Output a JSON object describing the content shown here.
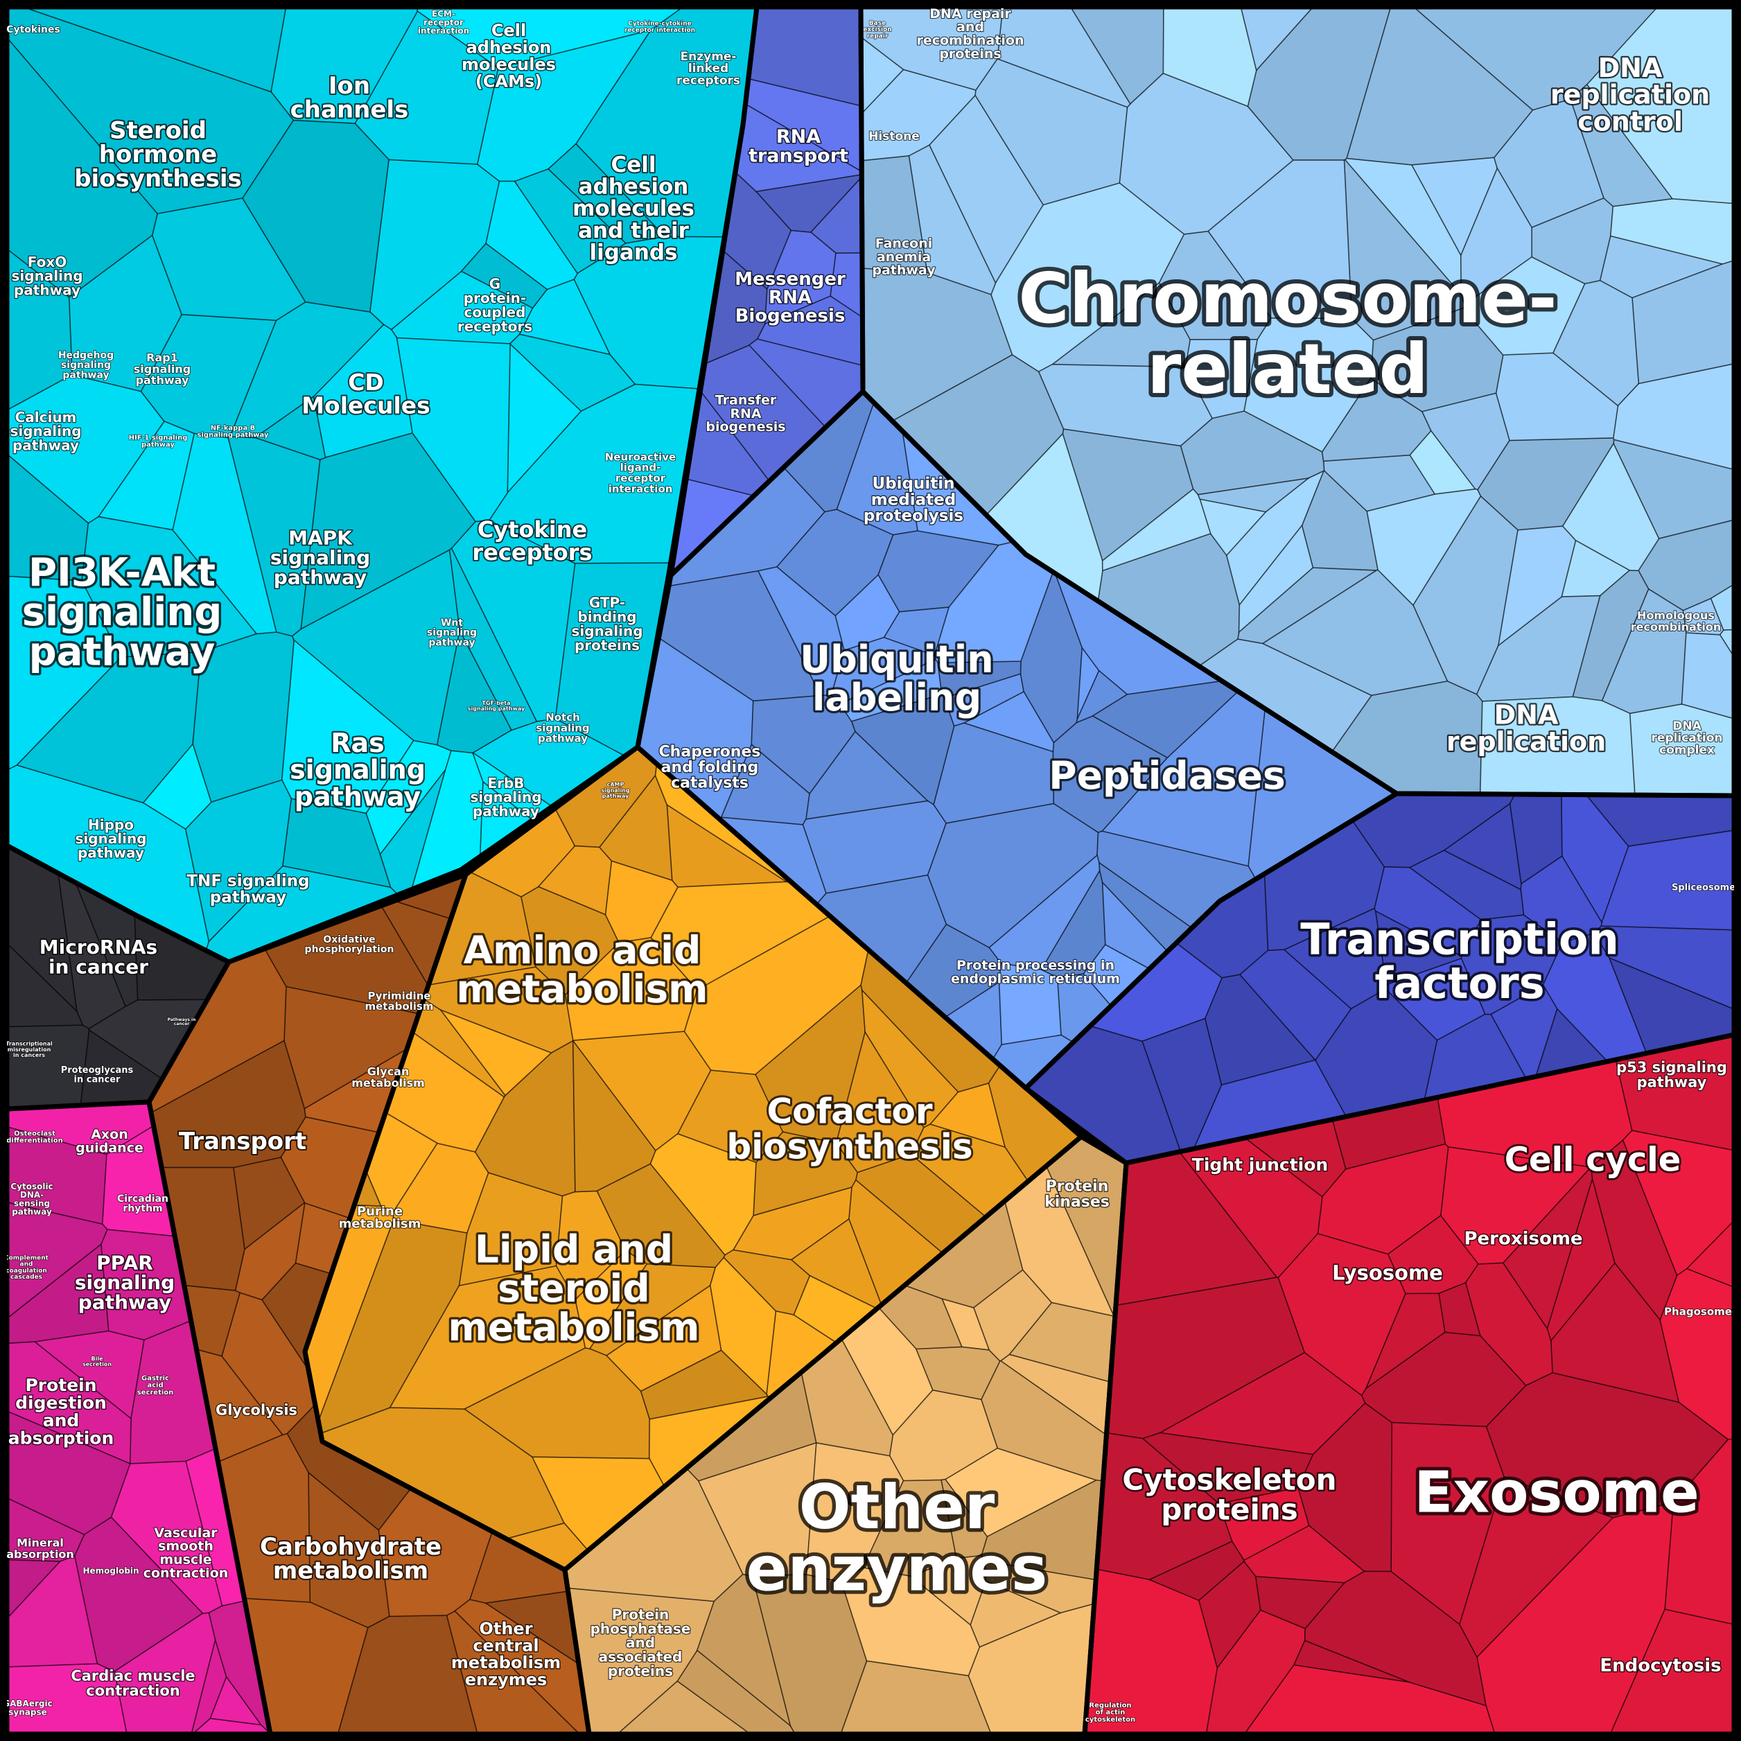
{
  "diagram": {
    "type": "voronoi-treemap",
    "groups": [
      {
        "id": "signaling",
        "color": "#00d4ec"
      },
      {
        "id": "chromosome-related",
        "color": "#9dd0fb"
      },
      {
        "id": "rna",
        "color": "#5d6fe0"
      },
      {
        "id": "protein-processing",
        "color": "#6b9af0"
      },
      {
        "id": "transcription",
        "color": "#4550cc"
      },
      {
        "id": "metabolism",
        "color": "#f0a21f"
      },
      {
        "id": "transport-carbs",
        "color": "#a8561c"
      },
      {
        "id": "other-enzymes",
        "color": "#e6b36c"
      },
      {
        "id": "cellular",
        "color": "#d6183a"
      },
      {
        "id": "organismal",
        "color": "#e0209c"
      },
      {
        "id": "cancer",
        "color": "#2d2d33"
      }
    ],
    "labels": [
      {
        "key": "cytokines",
        "text": "Cytokines"
      },
      {
        "key": "ecm",
        "text": "ECM-\nreceptor\ninteraction"
      },
      {
        "key": "cytokine-cytokine",
        "text": "Cytokine-cytokine\nreceptor interaction"
      },
      {
        "key": "steroid-hormone",
        "text": "Steroid\nhormone\nbiosynthesis"
      },
      {
        "key": "ion-channels",
        "text": "Ion\nchannels"
      },
      {
        "key": "cams",
        "text": "Cell\nadhesion\nmolecules\n(CAMs)"
      },
      {
        "key": "enzyme-linked",
        "text": "Enzyme-\nlinked\nreceptors"
      },
      {
        "key": "cell-adhesion-ligands",
        "text": "Cell\nadhesion\nmolecules\nand their\nligands"
      },
      {
        "key": "foxo",
        "text": "FoxO\nsignaling\npathway"
      },
      {
        "key": "hedgehog",
        "text": "Hedgehog\nsignaling\npathway"
      },
      {
        "key": "rap1",
        "text": "Rap1\nsignaling\npathway"
      },
      {
        "key": "gpcr",
        "text": "G\nprotein-\ncoupled\nreceptors"
      },
      {
        "key": "cd-molecules",
        "text": "CD\nMolecules"
      },
      {
        "key": "calcium",
        "text": "Calcium\nsignaling\npathway"
      },
      {
        "key": "hif1",
        "text": "HIF-1 signaling\npathway"
      },
      {
        "key": "nfkb",
        "text": "NF-kappa B\nsignaling pathway"
      },
      {
        "key": "neuroactive",
        "text": "Neuroactive\nligand-\nreceptor\ninteraction"
      },
      {
        "key": "cytokine-receptors",
        "text": "Cytokine\nreceptors"
      },
      {
        "key": "mapk",
        "text": "MAPK\nsignaling\npathway"
      },
      {
        "key": "pi3k",
        "text": "PI3K-Akt\nsignaling\npathway"
      },
      {
        "key": "wnt",
        "text": "Wnt\nsignaling\npathway"
      },
      {
        "key": "gtp",
        "text": "GTP-\nbinding\nsignaling\nproteins"
      },
      {
        "key": "tgf",
        "text": "TGF-beta\nsignaling pathway"
      },
      {
        "key": "notch",
        "text": "Notch\nsignaling\npathway"
      },
      {
        "key": "ras",
        "text": "Ras\nsignaling\npathway"
      },
      {
        "key": "erbb",
        "text": "ErbB\nsignaling\npathway"
      },
      {
        "key": "camp",
        "text": "cAMP\nsignaling\npathway"
      },
      {
        "key": "hippo",
        "text": "Hippo\nsignaling\npathway"
      },
      {
        "key": "tnf",
        "text": "TNF signaling\npathway"
      },
      {
        "key": "mirna",
        "text": "MicroRNAs\nin cancer"
      },
      {
        "key": "pathways-cancer",
        "text": "Pathways in\ncancer"
      },
      {
        "key": "transcriptional-misreg",
        "text": "Transcriptional\nmisregulation\nin cancers"
      },
      {
        "key": "proteoglycans",
        "text": "Proteoglycans\nin cancer"
      },
      {
        "key": "rna-transport",
        "text": "RNA\ntransport"
      },
      {
        "key": "base-excision",
        "text": "Base\nexcision\nrepair"
      },
      {
        "key": "dna-repair",
        "text": "DNA repair\nand\nrecombination\nproteins"
      },
      {
        "key": "histone",
        "text": "Histone"
      },
      {
        "key": "dna-replication-control",
        "text": "DNA\nreplication\ncontrol"
      },
      {
        "key": "fanconi",
        "text": "Fanconi\nanemia\npathway"
      },
      {
        "key": "mrna",
        "text": "Messenger\nRNA\nBiogenesis"
      },
      {
        "key": "chromosome",
        "text": "Chromosome-\nrelated"
      },
      {
        "key": "trna",
        "text": "Transfer\nRNA\nbiogenesis"
      },
      {
        "key": "ubiquitin-proteolysis",
        "text": "Ubiquitin\nmediated\nproteolysis"
      },
      {
        "key": "homologous",
        "text": "Homologous\nrecombination"
      },
      {
        "key": "ubiquitin-labeling",
        "text": "Ubiquitin\nlabeling"
      },
      {
        "key": "peptidases",
        "text": "Peptidases"
      },
      {
        "key": "chaperones",
        "text": "Chaperones\nand folding\ncatalysts"
      },
      {
        "key": "dna-replication",
        "text": "DNA\nreplication"
      },
      {
        "key": "dna-rep-complex",
        "text": "DNA\nreplication\ncomplex"
      },
      {
        "key": "spliceosome",
        "text": "Spliceosome"
      },
      {
        "key": "oxidative",
        "text": "Oxidative\nphosphorylation"
      },
      {
        "key": "amino-acid",
        "text": "Amino acid\nmetabolism"
      },
      {
        "key": "transcription-factors",
        "text": "Transcription\nfactors"
      },
      {
        "key": "er-processing",
        "text": "Protein processing in\nendoplasmic reticulum"
      },
      {
        "key": "pyrimidine",
        "text": "Pyrimidine\nmetabolism"
      },
      {
        "key": "glycan",
        "text": "Glycan\nmetabolism"
      },
      {
        "key": "p53",
        "text": "p53 signaling\npathway"
      },
      {
        "key": "osteoclast",
        "text": "Osteoclast\ndifferentiation"
      },
      {
        "key": "axon",
        "text": "Axon\nguidance"
      },
      {
        "key": "transport",
        "text": "Transport"
      },
      {
        "key": "cofactor",
        "text": "Cofactor\nbiosynthesis"
      },
      {
        "key": "tight-junction",
        "text": "Tight junction"
      },
      {
        "key": "cell-cycle",
        "text": "Cell cycle"
      },
      {
        "key": "cytosolic-dna",
        "text": "Cytosolic\nDNA-\nsensing\npathway"
      },
      {
        "key": "circadian",
        "text": "Circadian\nrhythm"
      },
      {
        "key": "protein-kinases",
        "text": "Protein\nkinases"
      },
      {
        "key": "purine",
        "text": "Purine\nmetabolism"
      },
      {
        "key": "peroxisome",
        "text": "Peroxisome"
      },
      {
        "key": "complement",
        "text": "Complement\nand\ncoagulation\ncascades"
      },
      {
        "key": "lysosome",
        "text": "Lysosome"
      },
      {
        "key": "ppar",
        "text": "PPAR\nsignaling\npathway"
      },
      {
        "key": "lipid",
        "text": "Lipid and\nsteroid\nmetabolism"
      },
      {
        "key": "phagosome",
        "text": "Phagosome"
      },
      {
        "key": "bile",
        "text": "Bile\nsecretion"
      },
      {
        "key": "gastric",
        "text": "Gastric\nacid\nsecretion"
      },
      {
        "key": "glycolysis",
        "text": "Glycolysis"
      },
      {
        "key": "protein-digestion",
        "text": "Protein\ndigestion\nand\nabsorption"
      },
      {
        "key": "cytoskeleton",
        "text": "Cytoskeleton\nproteins"
      },
      {
        "key": "exosome",
        "text": "Exosome"
      },
      {
        "key": "other-enzymes",
        "text": "Other\nenzymes"
      },
      {
        "key": "mineral",
        "text": "Mineral\nabsorption"
      },
      {
        "key": "vascular",
        "text": "Vascular\nsmooth\nmuscle\ncontraction"
      },
      {
        "key": "hemoglobin",
        "text": "Hemoglobin"
      },
      {
        "key": "carbohydrate",
        "text": "Carbohydrate\nmetabolism"
      },
      {
        "key": "other-central",
        "text": "Other\ncentral\nmetabolism\nenzymes"
      },
      {
        "key": "phosphatase",
        "text": "Protein\nphosphatase\nand\nassociated\nproteins"
      },
      {
        "key": "endocytosis",
        "text": "Endocytosis"
      },
      {
        "key": "cardiac",
        "text": "Cardiac muscle\ncontraction"
      },
      {
        "key": "gaba",
        "text": "GABAergic\nsynapse"
      },
      {
        "key": "regulation-actin",
        "text": "Regulation\nof actin\ncytoskeleton"
      }
    ]
  }
}
